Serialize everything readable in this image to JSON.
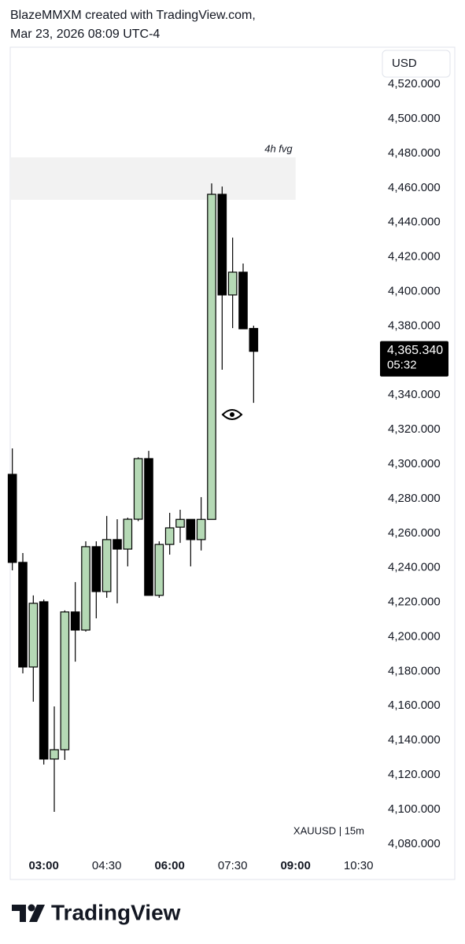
{
  "header": {
    "line1": "BlazeMMXM created with TradingView.com,",
    "line2": "Mar 23, 2026 08:09 UTC-4"
  },
  "chart_data": {
    "type": "candlestick",
    "currency": "USD",
    "symbol_label": "XAUUSD | 15m",
    "x": [
      "02:15",
      "02:30",
      "02:45",
      "03:00",
      "03:15",
      "03:30",
      "03:45",
      "04:00",
      "04:15",
      "04:30",
      "04:45",
      "05:00",
      "05:15",
      "05:30",
      "05:45",
      "06:00",
      "06:15",
      "06:30",
      "06:45",
      "07:00",
      "07:15",
      "07:30",
      "07:45",
      "08:00"
    ],
    "open": [
      4294.1,
      4243.1,
      4182.5,
      4220.3,
      4129.2,
      4134.6,
      4214.4,
      4203.9,
      4252.2,
      4226.2,
      4256.3,
      4250.8,
      4268.1,
      4303.2,
      4224.0,
      4253.5,
      4263.5,
      4268.0,
      4256.3,
      4268.0,
      4456.3,
      4398.0,
      4411.2,
      4378.6
    ],
    "high": [
      4309.1,
      4248.5,
      4224.0,
      4221.6,
      4159.7,
      4215.3,
      4231.7,
      4255.3,
      4255.3,
      4270.0,
      4268.1,
      4269.0,
      4304.0,
      4307.7,
      4255.3,
      4271.8,
      4273.6,
      4268.0,
      4280.9,
      4462.6,
      4460.8,
      4431.2,
      4416.2,
      4380.2
    ],
    "low": [
      4238.5,
      4178.8,
      4162.4,
      4126.0,
      4098.6,
      4128.7,
      4185.6,
      4203.0,
      4210.7,
      4222.6,
      4219.4,
      4240.8,
      4267.0,
      4224.0,
      4222.6,
      4247.6,
      4254.4,
      4240.8,
      4250.0,
      4268.0,
      4354.7,
      4378.8,
      4378.4,
      4335.5
    ],
    "close": [
      4243.1,
      4182.5,
      4219.4,
      4129.2,
      4134.6,
      4214.4,
      4203.9,
      4252.2,
      4226.2,
      4256.3,
      4250.8,
      4268.1,
      4303.2,
      4224.0,
      4253.5,
      4263.1,
      4268.0,
      4256.3,
      4268.0,
      4456.3,
      4398.0,
      4411.2,
      4378.4,
      4365.34
    ],
    "up_color": "#b5d9b5",
    "down_color": "#000000",
    "xlim": [
      "02:12",
      "11:03"
    ],
    "xticks": [
      "03:00",
      "04:30",
      "06:00",
      "07:30",
      "09:00",
      "10:30"
    ],
    "ylim": [
      4073.1,
      4541.5
    ],
    "yticks": [
      {
        "value": 4520,
        "label": "4,520.000"
      },
      {
        "value": 4500,
        "label": "4,500.000"
      },
      {
        "value": 4480,
        "label": "4,480.000"
      },
      {
        "value": 4460,
        "label": "4,460.000"
      },
      {
        "value": 4440,
        "label": "4,440.000"
      },
      {
        "value": 4420,
        "label": "4,420.000"
      },
      {
        "value": 4400,
        "label": "4,400.000"
      },
      {
        "value": 4380,
        "label": "4,380.000"
      },
      {
        "value": 4360,
        "label": "4,360.000"
      },
      {
        "value": 4340,
        "label": "4,340.000"
      },
      {
        "value": 4320,
        "label": "4,320.000"
      },
      {
        "value": 4300,
        "label": "4,300.000"
      },
      {
        "value": 4280,
        "label": "4,280.000"
      },
      {
        "value": 4260,
        "label": "4,260.000"
      },
      {
        "value": 4240,
        "label": "4,240.000"
      },
      {
        "value": 4220,
        "label": "4,220.000"
      },
      {
        "value": 4200,
        "label": "4,200.000"
      },
      {
        "value": 4180,
        "label": "4,180.000"
      },
      {
        "value": 4160,
        "label": "4,160.000"
      },
      {
        "value": 4140,
        "label": "4,140.000"
      },
      {
        "value": 4120,
        "label": "4,120.000"
      },
      {
        "value": 4100,
        "label": "4,100.000"
      },
      {
        "value": 4080,
        "label": "4,080.000"
      }
    ],
    "grid": false,
    "last_price": {
      "value": 4365.34,
      "label": "4,365.340",
      "countdown": "05:32"
    },
    "zone": {
      "label": "4h fvg",
      "top": 4477.7,
      "bottom": 4453.1,
      "start": "02:12",
      "end": "09:00",
      "color": "#f2f2f2"
    }
  },
  "footer": {
    "brand": "TradingView"
  }
}
